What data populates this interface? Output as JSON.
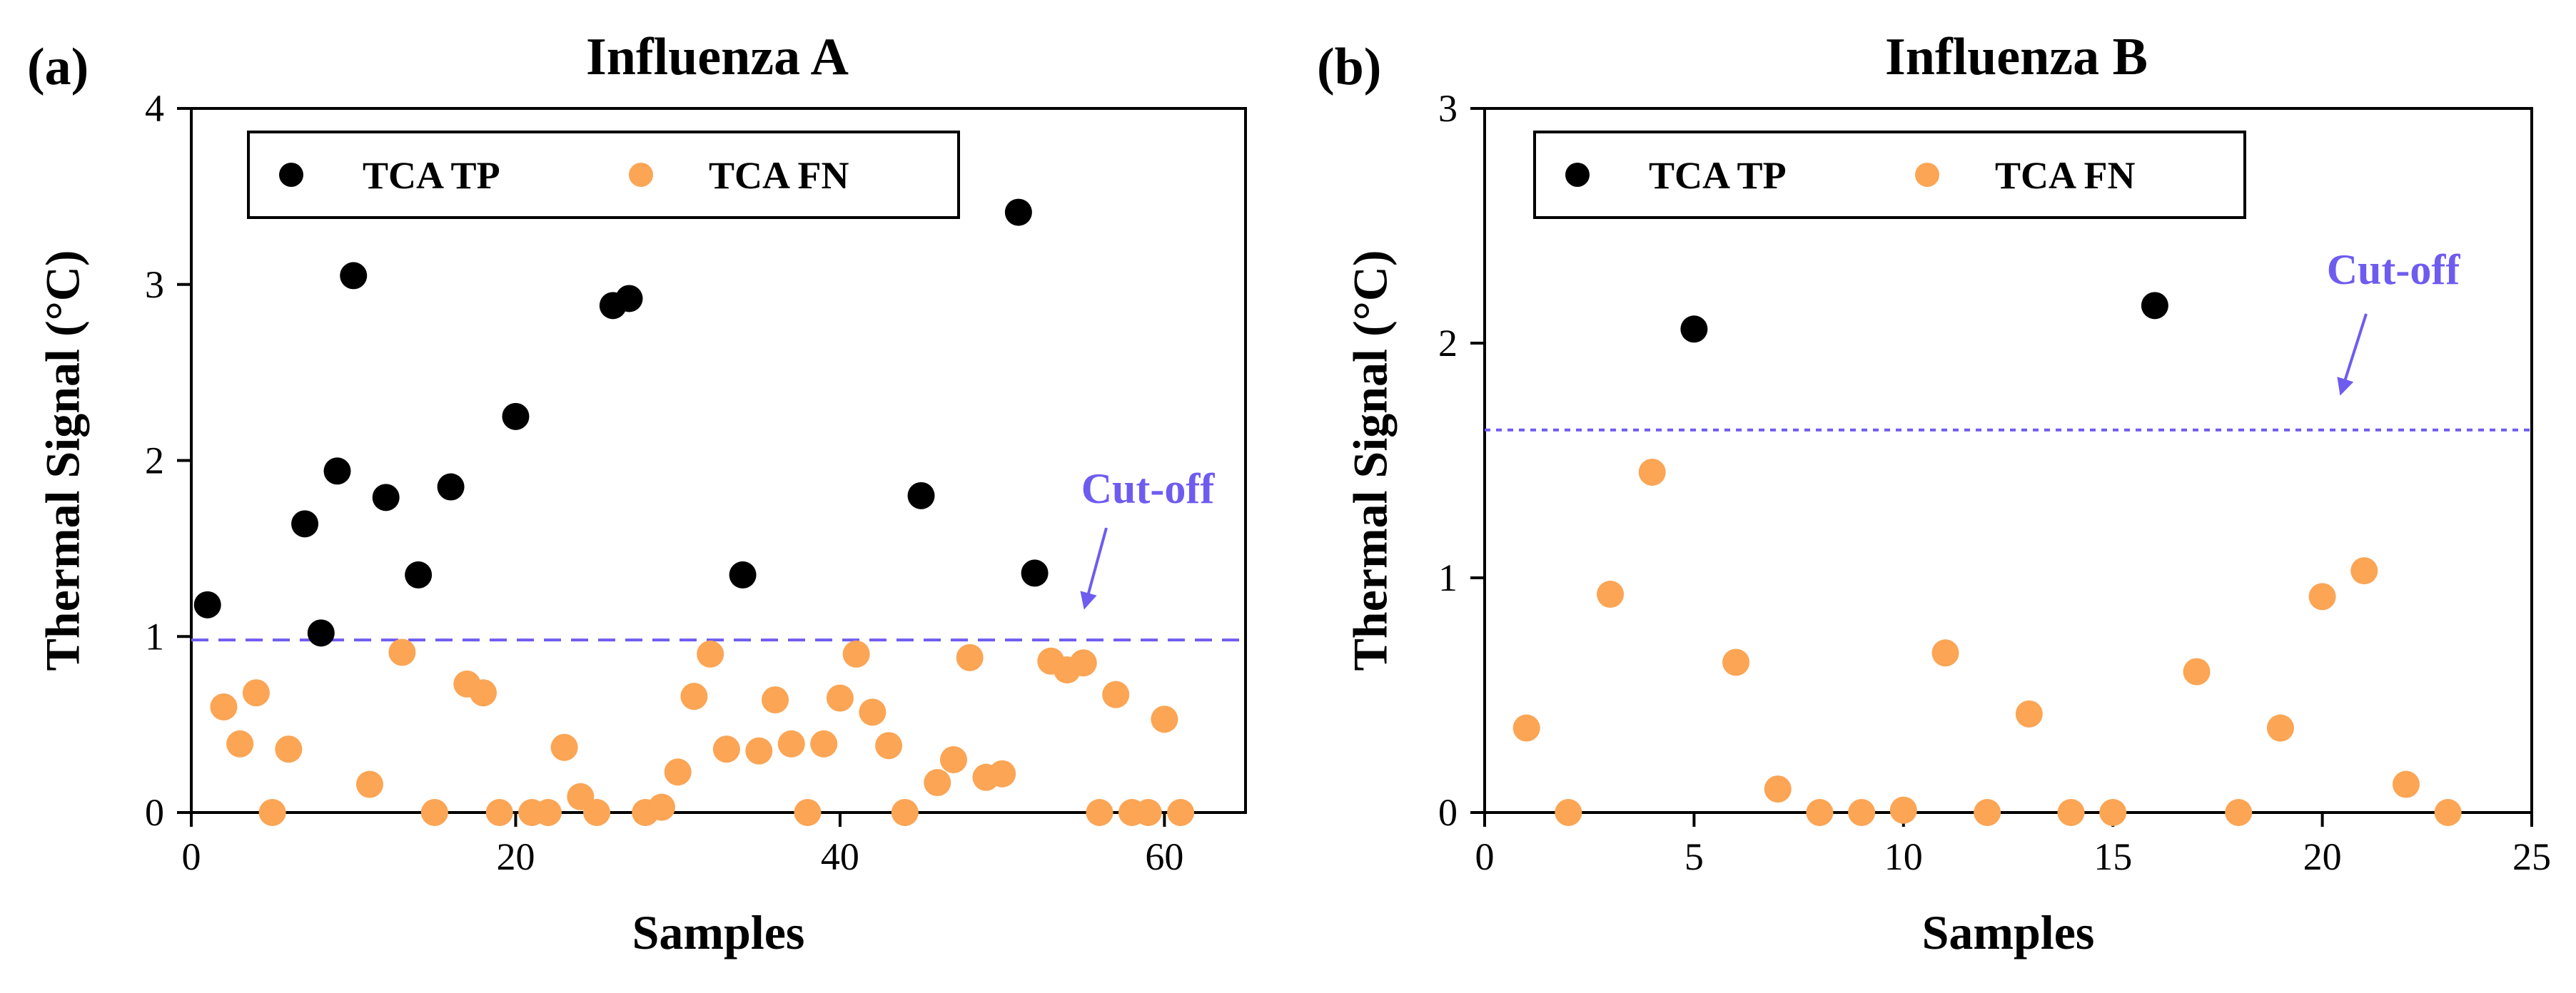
{
  "colors": {
    "tp": "#000000",
    "fn": "#fba555",
    "cutoff": "#6e5cf0",
    "axis": "#000000"
  },
  "chart_data": [
    {
      "type": "scatter",
      "panel_label": "(a)",
      "title": "Influenza A",
      "xlabel": "Samples",
      "ylabel": "Thermal Signal (°C)",
      "xlim": [
        0,
        65
      ],
      "ylim": [
        0,
        4
      ],
      "xticks": [
        0,
        20,
        40,
        60
      ],
      "yticks": [
        0,
        1,
        2,
        3,
        4
      ],
      "grid": false,
      "legend_position": "top-left",
      "cutoff": 0.98,
      "annotation": "Cut-off",
      "series": [
        {
          "name": "TCA TP",
          "color": "#000000",
          "points": [
            [
              1,
              1.18
            ],
            [
              7,
              1.64
            ],
            [
              8,
              1.02
            ],
            [
              9,
              1.94
            ],
            [
              10,
              3.05
            ],
            [
              12,
              1.79
            ],
            [
              14,
              1.35
            ],
            [
              16,
              1.85
            ],
            [
              20,
              2.25
            ],
            [
              26,
              2.88
            ],
            [
              27,
              2.92
            ],
            [
              34,
              1.35
            ],
            [
              45,
              1.8
            ],
            [
              51,
              3.41
            ],
            [
              52,
              1.36
            ]
          ]
        },
        {
          "name": "TCA FN",
          "color": "#fba555",
          "points": [
            [
              2,
              0.6
            ],
            [
              3,
              0.39
            ],
            [
              4,
              0.68
            ],
            [
              5,
              0.0
            ],
            [
              6,
              0.36
            ],
            [
              11,
              0.16
            ],
            [
              13,
              0.91
            ],
            [
              15,
              0.0
            ],
            [
              17,
              0.73
            ],
            [
              18,
              0.68
            ],
            [
              19,
              0.0
            ],
            [
              21,
              0.0
            ],
            [
              22,
              0.0
            ],
            [
              23,
              0.37
            ],
            [
              24,
              0.09
            ],
            [
              25,
              0.0
            ],
            [
              28,
              0.0
            ],
            [
              29,
              0.03
            ],
            [
              30,
              0.23
            ],
            [
              31,
              0.66
            ],
            [
              32,
              0.9
            ],
            [
              33,
              0.36
            ],
            [
              35,
              0.35
            ],
            [
              36,
              0.64
            ],
            [
              37,
              0.39
            ],
            [
              38,
              0.0
            ],
            [
              39,
              0.39
            ],
            [
              40,
              0.65
            ],
            [
              41,
              0.9
            ],
            [
              42,
              0.57
            ],
            [
              43,
              0.38
            ],
            [
              44,
              0.0
            ],
            [
              46,
              0.17
            ],
            [
              47,
              0.3
            ],
            [
              48,
              0.88
            ],
            [
              49,
              0.2
            ],
            [
              50,
              0.22
            ],
            [
              53,
              0.86
            ],
            [
              54,
              0.81
            ],
            [
              55,
              0.85
            ],
            [
              56,
              0.0
            ],
            [
              57,
              0.67
            ],
            [
              58,
              0.0
            ],
            [
              59,
              0.0
            ],
            [
              60,
              0.53
            ],
            [
              61,
              0.0
            ]
          ]
        }
      ]
    },
    {
      "type": "scatter",
      "panel_label": "(b)",
      "title": "Influenza B",
      "xlabel": "Samples",
      "ylabel": "Thermal Signal (°C)",
      "xlim": [
        0,
        25
      ],
      "ylim": [
        0,
        3
      ],
      "xticks": [
        0,
        5,
        10,
        15,
        20,
        25
      ],
      "yticks": [
        0,
        1,
        2,
        3
      ],
      "grid": false,
      "legend_position": "top-left",
      "cutoff": 1.63,
      "annotation": "Cut-off",
      "series": [
        {
          "name": "TCA TP",
          "color": "#000000",
          "points": [
            [
              5,
              2.06
            ],
            [
              16,
              2.16
            ]
          ]
        },
        {
          "name": "TCA FN",
          "color": "#fba555",
          "points": [
            [
              1,
              0.36
            ],
            [
              2,
              0.0
            ],
            [
              3,
              0.93
            ],
            [
              4,
              1.45
            ],
            [
              6,
              0.64
            ],
            [
              7,
              0.1
            ],
            [
              8,
              0.0
            ],
            [
              9,
              0.0
            ],
            [
              10,
              0.01
            ],
            [
              11,
              0.68
            ],
            [
              12,
              0.0
            ],
            [
              13,
              0.42
            ],
            [
              14,
              0.0
            ],
            [
              15,
              0.0
            ],
            [
              17,
              0.6
            ],
            [
              18,
              0.0
            ],
            [
              19,
              0.36
            ],
            [
              20,
              0.92
            ],
            [
              21,
              1.03
            ],
            [
              22,
              0.12
            ],
            [
              23,
              0.0
            ]
          ]
        }
      ]
    }
  ]
}
